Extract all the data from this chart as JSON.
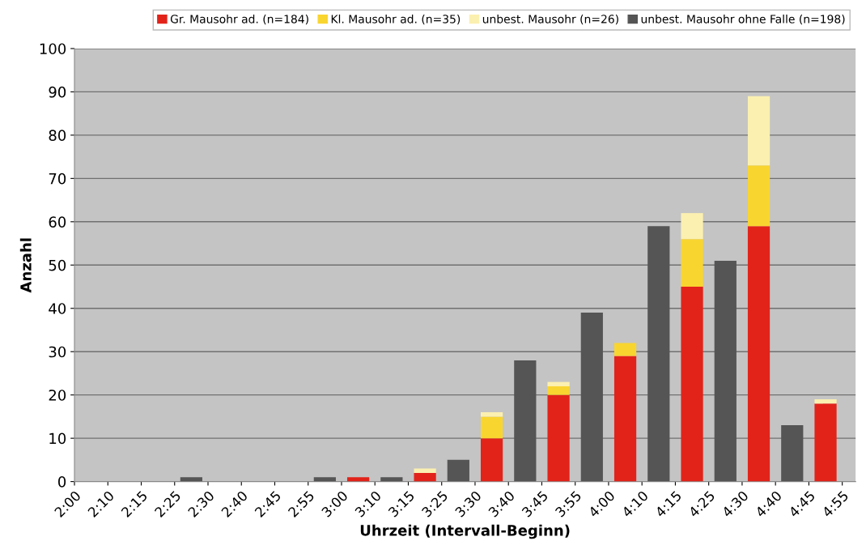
{
  "chart_data": {
    "type": "bar",
    "stacked": true,
    "xlabel": "Uhrzeit (Intervall-Beginn)",
    "ylabel": "Anzahl",
    "categories": [
      "2:00",
      null,
      "2:10",
      null,
      "2:15",
      null,
      "2:25",
      null,
      "2:30",
      null,
      "2:40",
      null,
      "2:45",
      null,
      "2:55",
      null,
      "3:00",
      null,
      "3:10",
      null,
      "3:15",
      null,
      "3:25",
      null,
      "3:30",
      null,
      "3:40",
      null,
      "3:45",
      null,
      "3:55",
      null,
      "4:00",
      null,
      "4:10",
      null,
      "4:15",
      null,
      "4:25",
      null,
      "4:30",
      null,
      "4:40",
      null,
      "4:45",
      null,
      "4:55"
    ],
    "ylim": [
      0,
      100
    ],
    "yticks": [
      0,
      10,
      20,
      30,
      40,
      50,
      60,
      70,
      80,
      90,
      100
    ],
    "grid": "y",
    "legend": "top",
    "series": [
      {
        "name": "Gr. Mausohr ad. (n=184)",
        "color": "#e2231a",
        "values": [
          null,
          null,
          null,
          null,
          null,
          null,
          null,
          null,
          null,
          null,
          null,
          null,
          null,
          null,
          null,
          null,
          null,
          1,
          null,
          null,
          null,
          2,
          null,
          null,
          null,
          10,
          null,
          null,
          null,
          20,
          null,
          null,
          null,
          29,
          null,
          null,
          null,
          45,
          null,
          null,
          null,
          59,
          null,
          null,
          null,
          18,
          null
        ]
      },
      {
        "name": "Kl. Mausohr ad. (n=35)",
        "color": "#f9d530",
        "values": [
          null,
          null,
          null,
          null,
          null,
          null,
          null,
          null,
          null,
          null,
          null,
          null,
          null,
          null,
          null,
          null,
          null,
          null,
          null,
          null,
          null,
          null,
          null,
          null,
          null,
          5,
          null,
          null,
          null,
          2,
          null,
          null,
          null,
          3,
          null,
          null,
          null,
          11,
          null,
          null,
          null,
          14,
          null,
          null,
          null,
          null,
          null
        ]
      },
      {
        "name": "unbest. Mausohr (n=26)",
        "color": "#fbf0b0",
        "values": [
          null,
          null,
          null,
          null,
          null,
          null,
          null,
          null,
          null,
          null,
          null,
          null,
          null,
          null,
          null,
          null,
          null,
          null,
          null,
          null,
          null,
          1,
          null,
          null,
          null,
          1,
          null,
          null,
          null,
          1,
          null,
          null,
          null,
          null,
          null,
          null,
          null,
          6,
          null,
          null,
          null,
          16,
          null,
          null,
          null,
          1,
          null
        ]
      },
      {
        "name": "unbest. Mausohr ohne Falle (n=198)",
        "color": "#555555",
        "values": [
          null,
          null,
          null,
          null,
          null,
          null,
          null,
          1,
          null,
          null,
          null,
          null,
          null,
          null,
          null,
          1,
          null,
          null,
          null,
          1,
          null,
          null,
          null,
          5,
          null,
          null,
          null,
          28,
          null,
          null,
          null,
          39,
          null,
          null,
          null,
          59,
          null,
          null,
          null,
          51,
          null,
          null,
          null,
          13,
          null,
          null,
          null
        ]
      }
    ]
  }
}
